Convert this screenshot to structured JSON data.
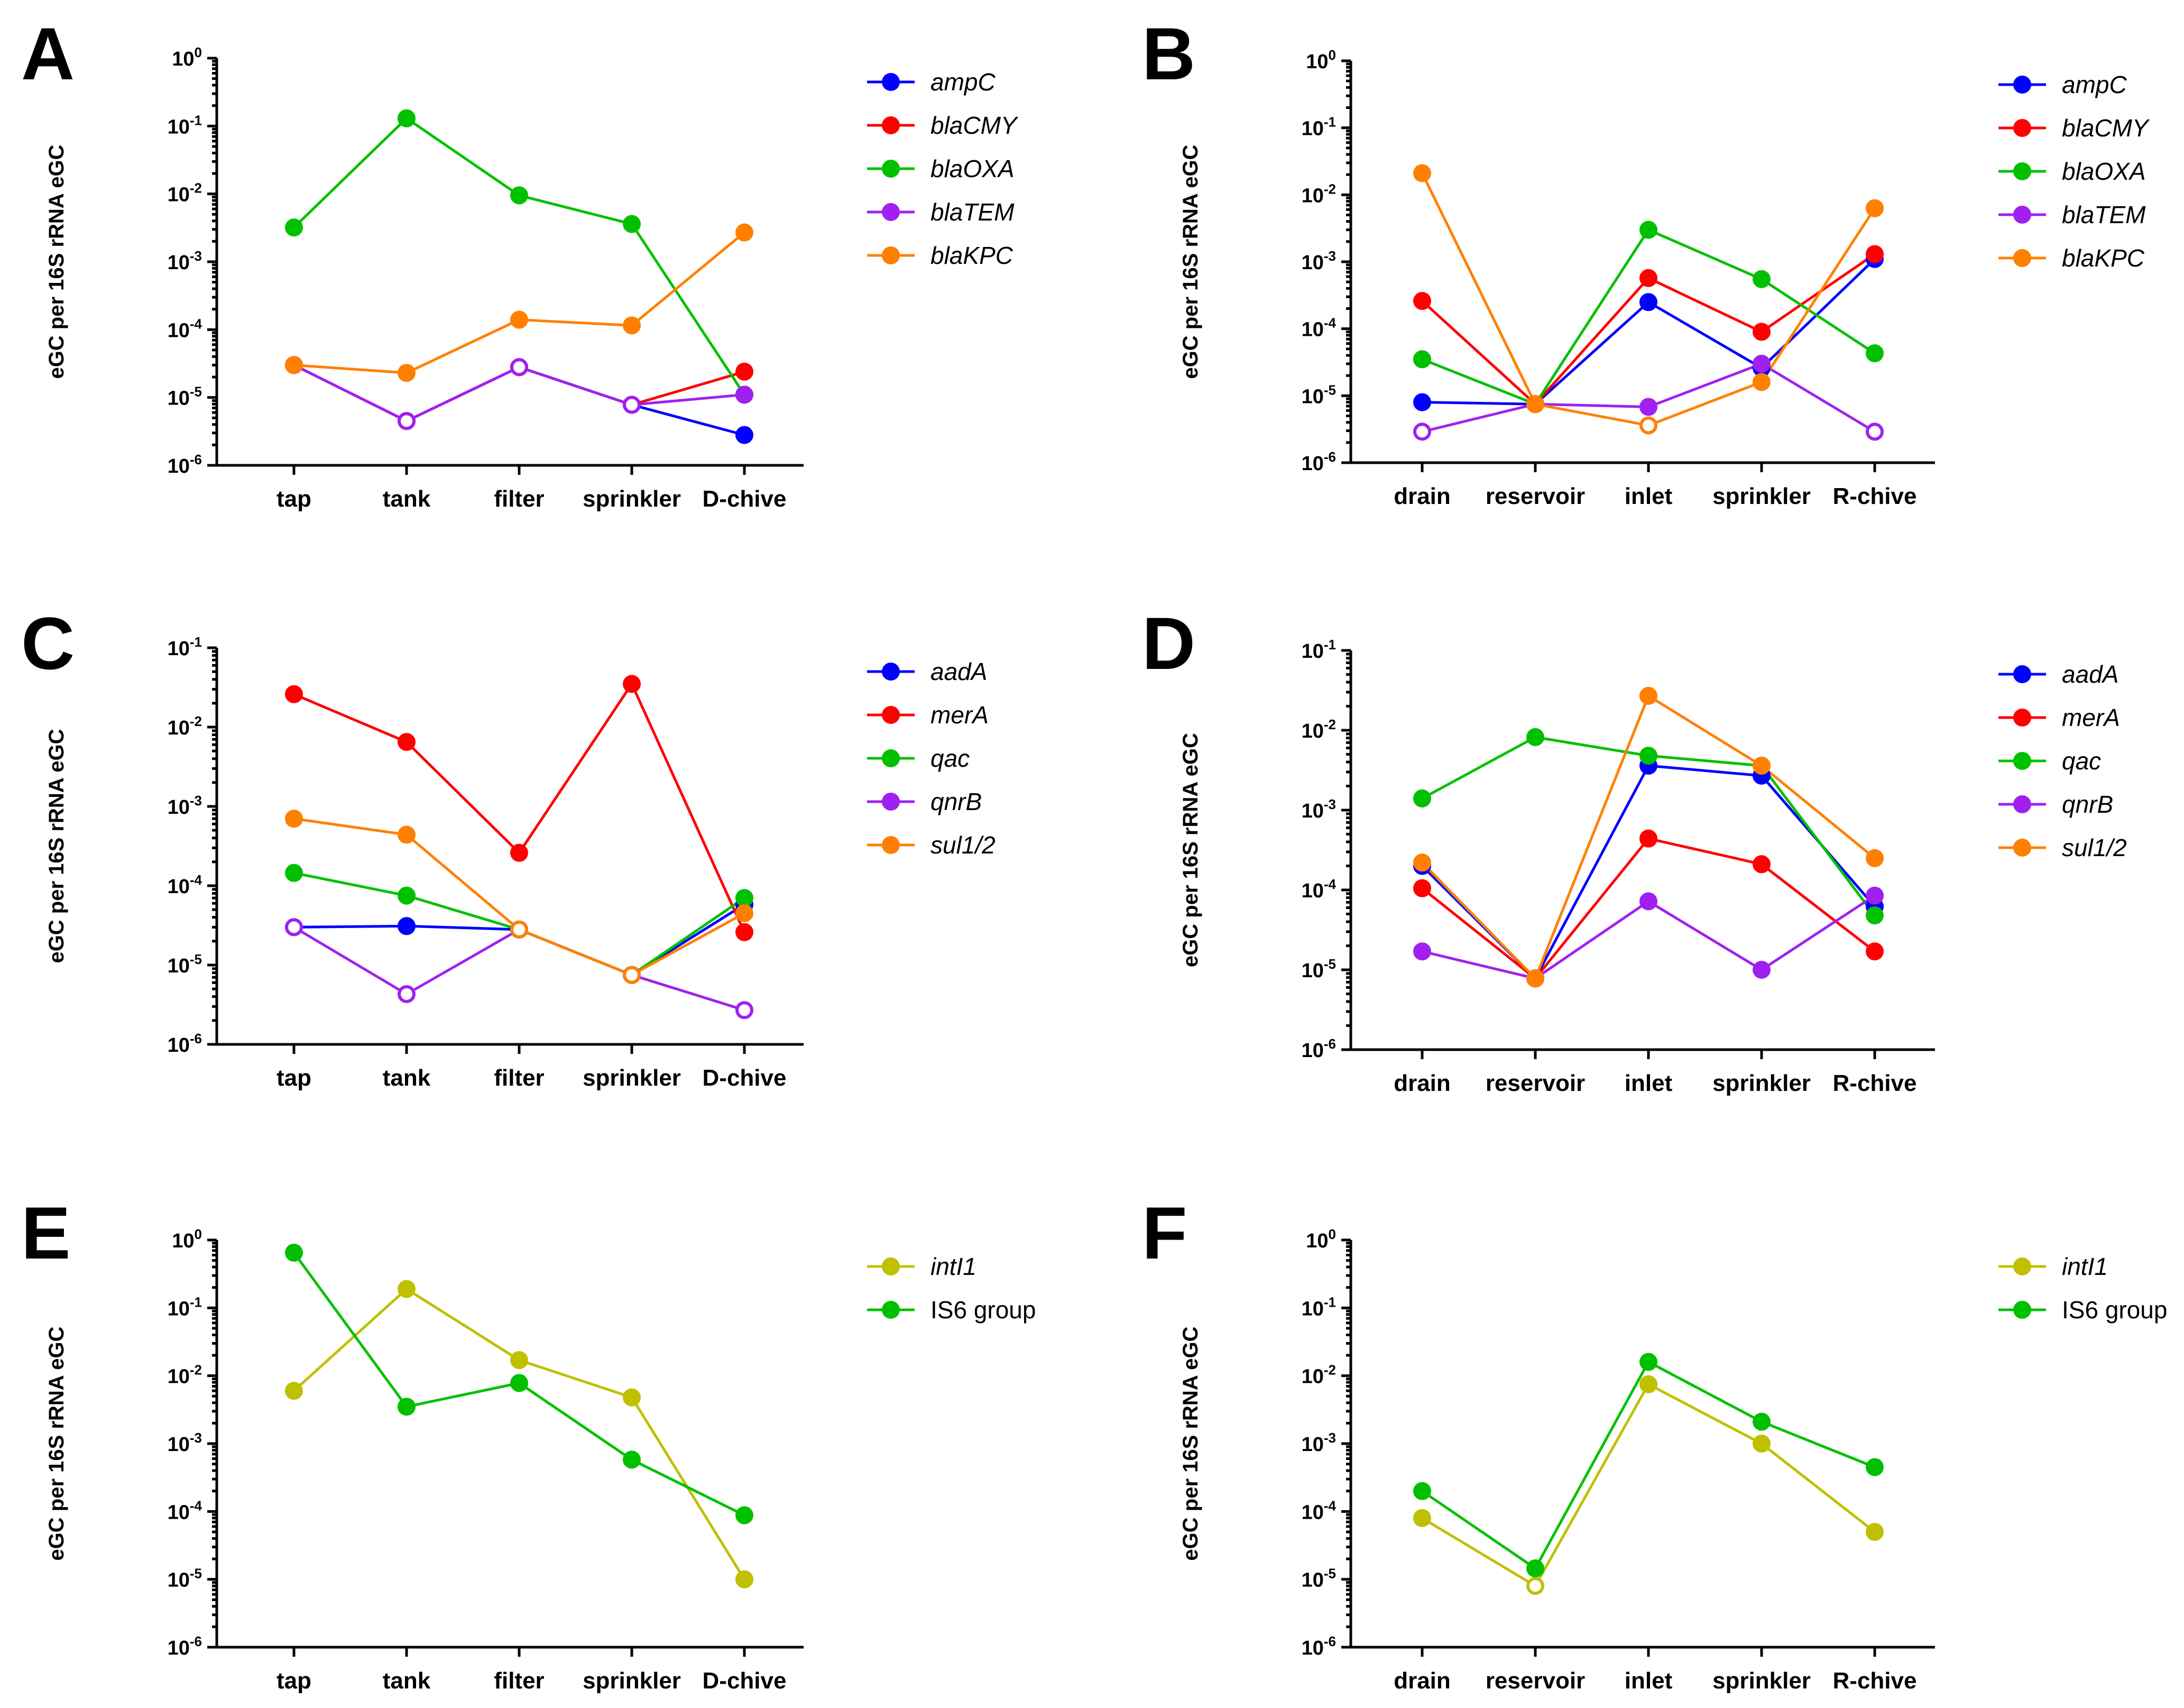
{
  "chart_data": [
    {
      "panel": "A",
      "type": "line",
      "yscale": "log",
      "ylabel": "eGC per 16S rRNA eGC",
      "ylim_exp": [
        -6,
        0
      ],
      "categories": [
        "tap",
        "tank",
        "filter",
        "sprinkler",
        "D-chive"
      ],
      "series": [
        {
          "name": "ampC",
          "italic": true,
          "color": "#0000ff",
          "values": [
            3e-05,
            4.5e-06,
            2.8e-05,
            7.8e-06,
            2.8e-06
          ],
          "hollow": [
            true,
            true,
            true,
            true,
            false
          ]
        },
        {
          "name": "blaCMY",
          "italic": true,
          "color": "#ff0000",
          "values": [
            3e-05,
            4.5e-06,
            2.8e-05,
            7.8e-06,
            2.4e-05
          ],
          "hollow": [
            true,
            true,
            true,
            true,
            false
          ]
        },
        {
          "name": "blaOXA",
          "italic": true,
          "color": "#00c000",
          "values": [
            0.0032,
            0.13,
            0.0095,
            0.0036,
            1.1e-05
          ],
          "hollow": [
            false,
            false,
            false,
            false,
            false
          ]
        },
        {
          "name": "blaTEM",
          "italic": true,
          "color": "#a020f0",
          "values": [
            3e-05,
            4.5e-06,
            2.8e-05,
            7.8e-06,
            1.1e-05
          ],
          "hollow": [
            true,
            true,
            true,
            true,
            false
          ]
        },
        {
          "name": "blaKPC",
          "italic": true,
          "color": "#ff8000",
          "values": [
            3e-05,
            2.3e-05,
            0.00014,
            0.000115,
            0.0027
          ],
          "hollow": [
            false,
            false,
            false,
            false,
            false
          ]
        }
      ]
    },
    {
      "panel": "B",
      "type": "line",
      "yscale": "log",
      "ylabel": "eGC per 16S rRNA eGC",
      "ylim_exp": [
        -6,
        0
      ],
      "categories": [
        "drain",
        "reservoir",
        "inlet",
        "sprinkler",
        "R-chive"
      ],
      "series": [
        {
          "name": "ampC",
          "italic": true,
          "color": "#0000ff",
          "values": [
            8e-06,
            7.5e-06,
            0.00025,
            2.6e-05,
            0.0011
          ],
          "hollow": [
            false,
            true,
            false,
            false,
            false
          ]
        },
        {
          "name": "blaCMY",
          "italic": true,
          "color": "#ff0000",
          "values": [
            0.00026,
            7.5e-06,
            0.00057,
            9e-05,
            0.0013
          ],
          "hollow": [
            false,
            true,
            false,
            false,
            false
          ]
        },
        {
          "name": "blaOXA",
          "italic": true,
          "color": "#00c000",
          "values": [
            3.5e-05,
            7.5e-06,
            0.003,
            0.00055,
            4.3e-05
          ],
          "hollow": [
            false,
            true,
            false,
            false,
            false
          ]
        },
        {
          "name": "blaTEM",
          "italic": true,
          "color": "#a020f0",
          "values": [
            2.9e-06,
            7.5e-06,
            6.8e-06,
            3e-05,
            2.9e-06
          ],
          "hollow": [
            true,
            true,
            false,
            false,
            true
          ]
        },
        {
          "name": "blaKPC",
          "italic": true,
          "color": "#ff8000",
          "values": [
            0.021,
            7.5e-06,
            3.6e-06,
            1.6e-05,
            0.0063
          ],
          "hollow": [
            false,
            false,
            true,
            false,
            false
          ]
        }
      ]
    },
    {
      "panel": "C",
      "type": "line",
      "yscale": "log",
      "ylabel": "eGC per 16S rRNA eGC",
      "ylim_exp": [
        -6,
        -1
      ],
      "categories": [
        "tap",
        "tank",
        "filter",
        "sprinkler",
        "D-chive"
      ],
      "series": [
        {
          "name": "aadA",
          "italic": true,
          "color": "#0000ff",
          "values": [
            3e-05,
            3.1e-05,
            2.8e-05,
            7.5e-06,
            5.8e-05
          ],
          "hollow": [
            true,
            false,
            true,
            true,
            false
          ]
        },
        {
          "name": "merA",
          "italic": true,
          "color": "#ff0000",
          "values": [
            0.026,
            0.0065,
            0.00026,
            0.035,
            2.6e-05
          ],
          "hollow": [
            false,
            false,
            false,
            false,
            false
          ]
        },
        {
          "name": "qac",
          "italic": true,
          "color": "#00c000",
          "values": [
            0.000145,
            7.5e-05,
            2.8e-05,
            7.5e-06,
            7e-05
          ],
          "hollow": [
            false,
            false,
            true,
            true,
            false
          ]
        },
        {
          "name": "qnrB",
          "italic": true,
          "color": "#a020f0",
          "values": [
            3e-05,
            4.3e-06,
            2.8e-05,
            7.5e-06,
            2.7e-06
          ],
          "hollow": [
            true,
            true,
            true,
            true,
            true
          ]
        },
        {
          "name": "sul1/2",
          "italic": true,
          "color": "#ff8000",
          "values": [
            0.0007,
            0.00044,
            2.8e-05,
            7.5e-06,
            4.5e-05
          ],
          "hollow": [
            false,
            false,
            true,
            true,
            false
          ]
        }
      ]
    },
    {
      "panel": "D",
      "type": "line",
      "yscale": "log",
      "ylabel": "eGC per 16S rRNA eGC",
      "ylim_exp": [
        -6,
        -1
      ],
      "categories": [
        "drain",
        "reservoir",
        "inlet",
        "sprinkler",
        "R-chive"
      ],
      "series": [
        {
          "name": "aadA",
          "italic": true,
          "color": "#0000ff",
          "values": [
            0.0002,
            7.8e-06,
            0.0036,
            0.0027,
            6.2e-05
          ],
          "hollow": [
            false,
            true,
            false,
            false,
            false
          ]
        },
        {
          "name": "merA",
          "italic": true,
          "color": "#ff0000",
          "values": [
            0.000105,
            7.8e-06,
            0.00044,
            0.00021,
            1.7e-05
          ],
          "hollow": [
            false,
            true,
            false,
            false,
            false
          ]
        },
        {
          "name": "qac",
          "italic": true,
          "color": "#00c000",
          "values": [
            0.0014,
            0.0082,
            0.0048,
            0.0036,
            4.8e-05
          ],
          "hollow": [
            false,
            false,
            false,
            false,
            false
          ]
        },
        {
          "name": "qnrB",
          "italic": true,
          "color": "#a020f0",
          "values": [
            1.7e-05,
            7.8e-06,
            7.2e-05,
            1e-05,
            8.5e-05
          ],
          "hollow": [
            false,
            true,
            false,
            false,
            false
          ]
        },
        {
          "name": "sul1/2",
          "italic": true,
          "color": "#ff8000",
          "values": [
            0.00022,
            7.8e-06,
            0.027,
            0.0036,
            0.00025
          ],
          "hollow": [
            false,
            false,
            false,
            false,
            false
          ]
        }
      ]
    },
    {
      "panel": "E",
      "type": "line",
      "yscale": "log",
      "ylabel": "eGC per 16S rRNA eGC",
      "ylim_exp": [
        -6,
        0
      ],
      "categories": [
        "tap",
        "tank",
        "filter",
        "sprinkler",
        "D-chive"
      ],
      "series": [
        {
          "name": "intI1",
          "italic": true,
          "color": "#c0c000",
          "values": [
            0.006,
            0.19,
            0.017,
            0.0048,
            1e-05
          ],
          "hollow": [
            false,
            false,
            false,
            false,
            false
          ]
        },
        {
          "name": "IS6 group",
          "italic": false,
          "color": "#00c000",
          "values": [
            0.65,
            0.0035,
            0.0078,
            0.00058,
            8.8e-05
          ],
          "hollow": [
            false,
            false,
            false,
            false,
            false
          ]
        }
      ]
    },
    {
      "panel": "F",
      "type": "line",
      "yscale": "log",
      "ylabel": "eGC per 16S rRNA eGC",
      "ylim_exp": [
        -6,
        0
      ],
      "categories": [
        "drain",
        "reservoir",
        "inlet",
        "sprinkler",
        "R-chive"
      ],
      "series": [
        {
          "name": "intI1",
          "italic": true,
          "color": "#c0c000",
          "values": [
            8e-05,
            8e-06,
            0.0075,
            0.001,
            5e-05
          ],
          "hollow": [
            false,
            true,
            false,
            false,
            false
          ]
        },
        {
          "name": "IS6 group",
          "italic": false,
          "color": "#00c000",
          "values": [
            0.0002,
            1.45e-05,
            0.016,
            0.0021,
            0.00045
          ],
          "hollow": [
            false,
            false,
            false,
            false,
            false
          ]
        }
      ]
    }
  ]
}
